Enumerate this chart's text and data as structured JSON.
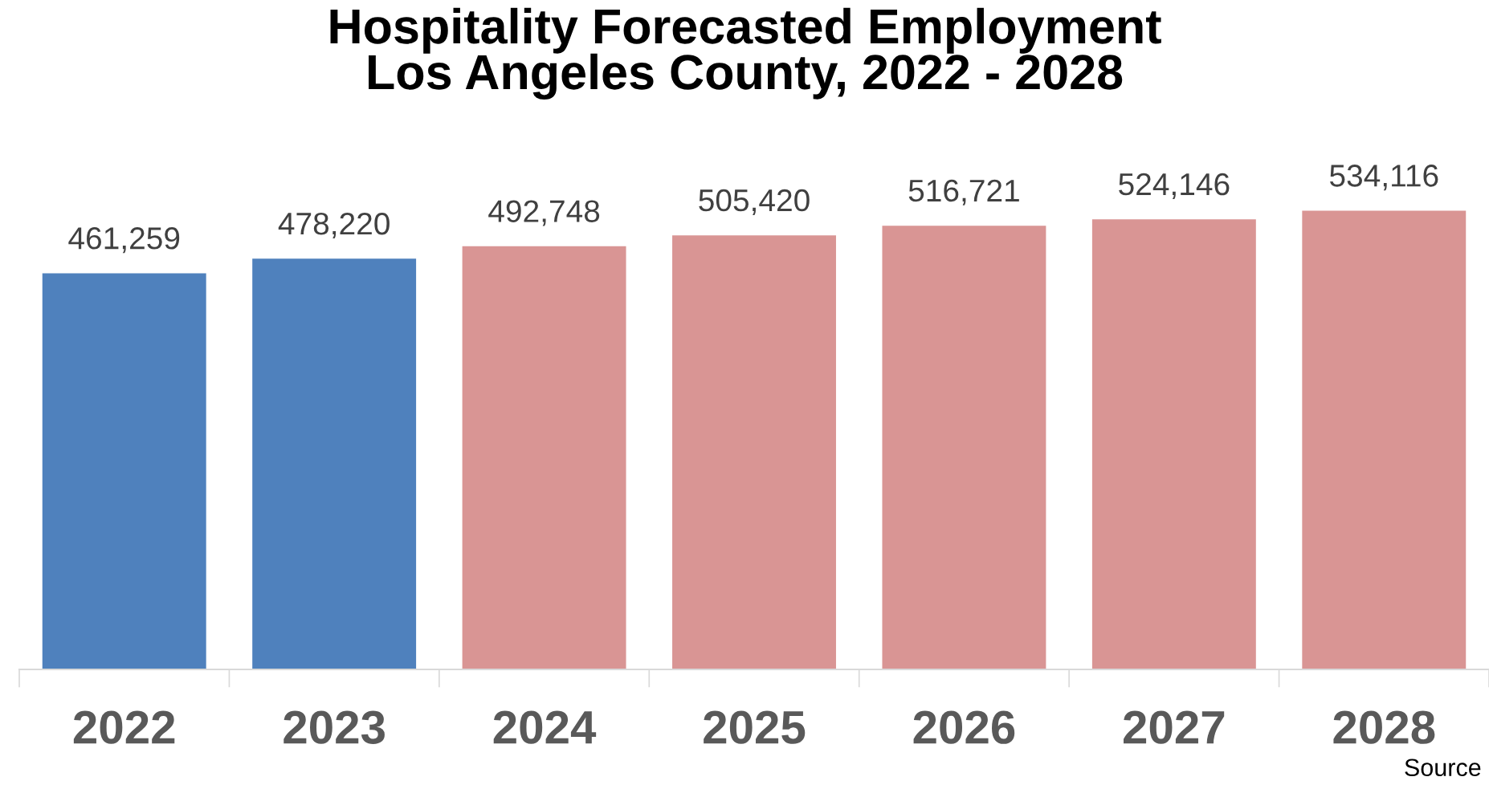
{
  "chart_data": {
    "type": "bar",
    "title": "Hospitality Forecasted Employment\nLos Angeles County, 2022 - 2028",
    "categories": [
      "2022",
      "2023",
      "2024",
      "2025",
      "2026",
      "2027",
      "2028"
    ],
    "values": [
      461259,
      478220,
      492748,
      505420,
      516721,
      524146,
      534116
    ],
    "colors": [
      "#4f81bd",
      "#4f81bd",
      "#d99594",
      "#d99594",
      "#d99594",
      "#d99594",
      "#d99594"
    ],
    "value_labels": [
      "461,259",
      "478,220",
      "492,748",
      "505,420",
      "516,721",
      "524,146",
      "534,116"
    ],
    "tick_labels": "x",
    "annotations": [
      "Source"
    ]
  }
}
